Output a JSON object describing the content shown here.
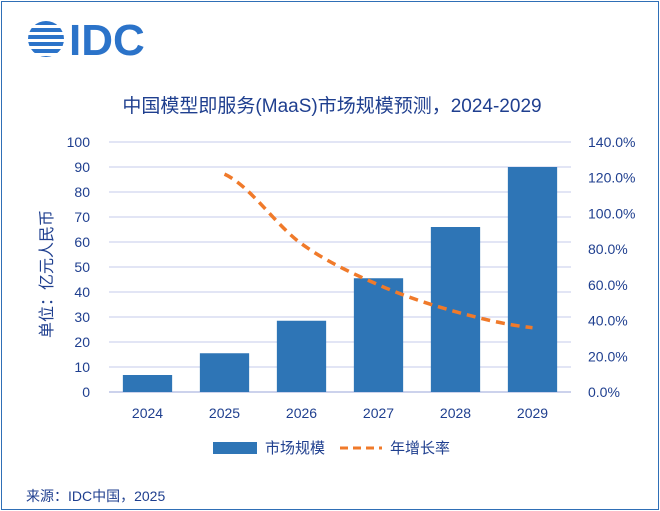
{
  "brand": {
    "logo_text": "IDC",
    "color": "#2b73c9"
  },
  "source_label": "来源：IDC中国，2025",
  "chart_data": {
    "type": "bar",
    "title": "中国模型即服务(MaaS)市场规模预测，2024-2029",
    "categories": [
      "2024",
      "2025",
      "2026",
      "2027",
      "2028",
      "2029"
    ],
    "series": [
      {
        "name": "市场规模",
        "kind": "bar",
        "axis": "left",
        "color": "#2e75b6",
        "values": [
          6.8,
          15.5,
          28.5,
          45.5,
          66.0,
          90.0
        ]
      },
      {
        "name": "年增长率",
        "kind": "line",
        "style": "dashed",
        "axis": "right",
        "color": "#f07a2a",
        "values": [
          null,
          122.0,
          83.0,
          60.0,
          45.0,
          36.0
        ]
      }
    ],
    "ylabel": "单位：亿元人民币",
    "ylim": [
      0,
      100
    ],
    "y_ticks": [
      "0",
      "10",
      "20",
      "30",
      "40",
      "50",
      "60",
      "70",
      "80",
      "90",
      "100"
    ],
    "y2lim": [
      0,
      140
    ],
    "y2_ticks": [
      "0.0%",
      "20.0%",
      "40.0%",
      "60.0%",
      "80.0%",
      "100.0%",
      "120.0%",
      "140.0%"
    ],
    "legend_position": "bottom",
    "grid": true
  }
}
